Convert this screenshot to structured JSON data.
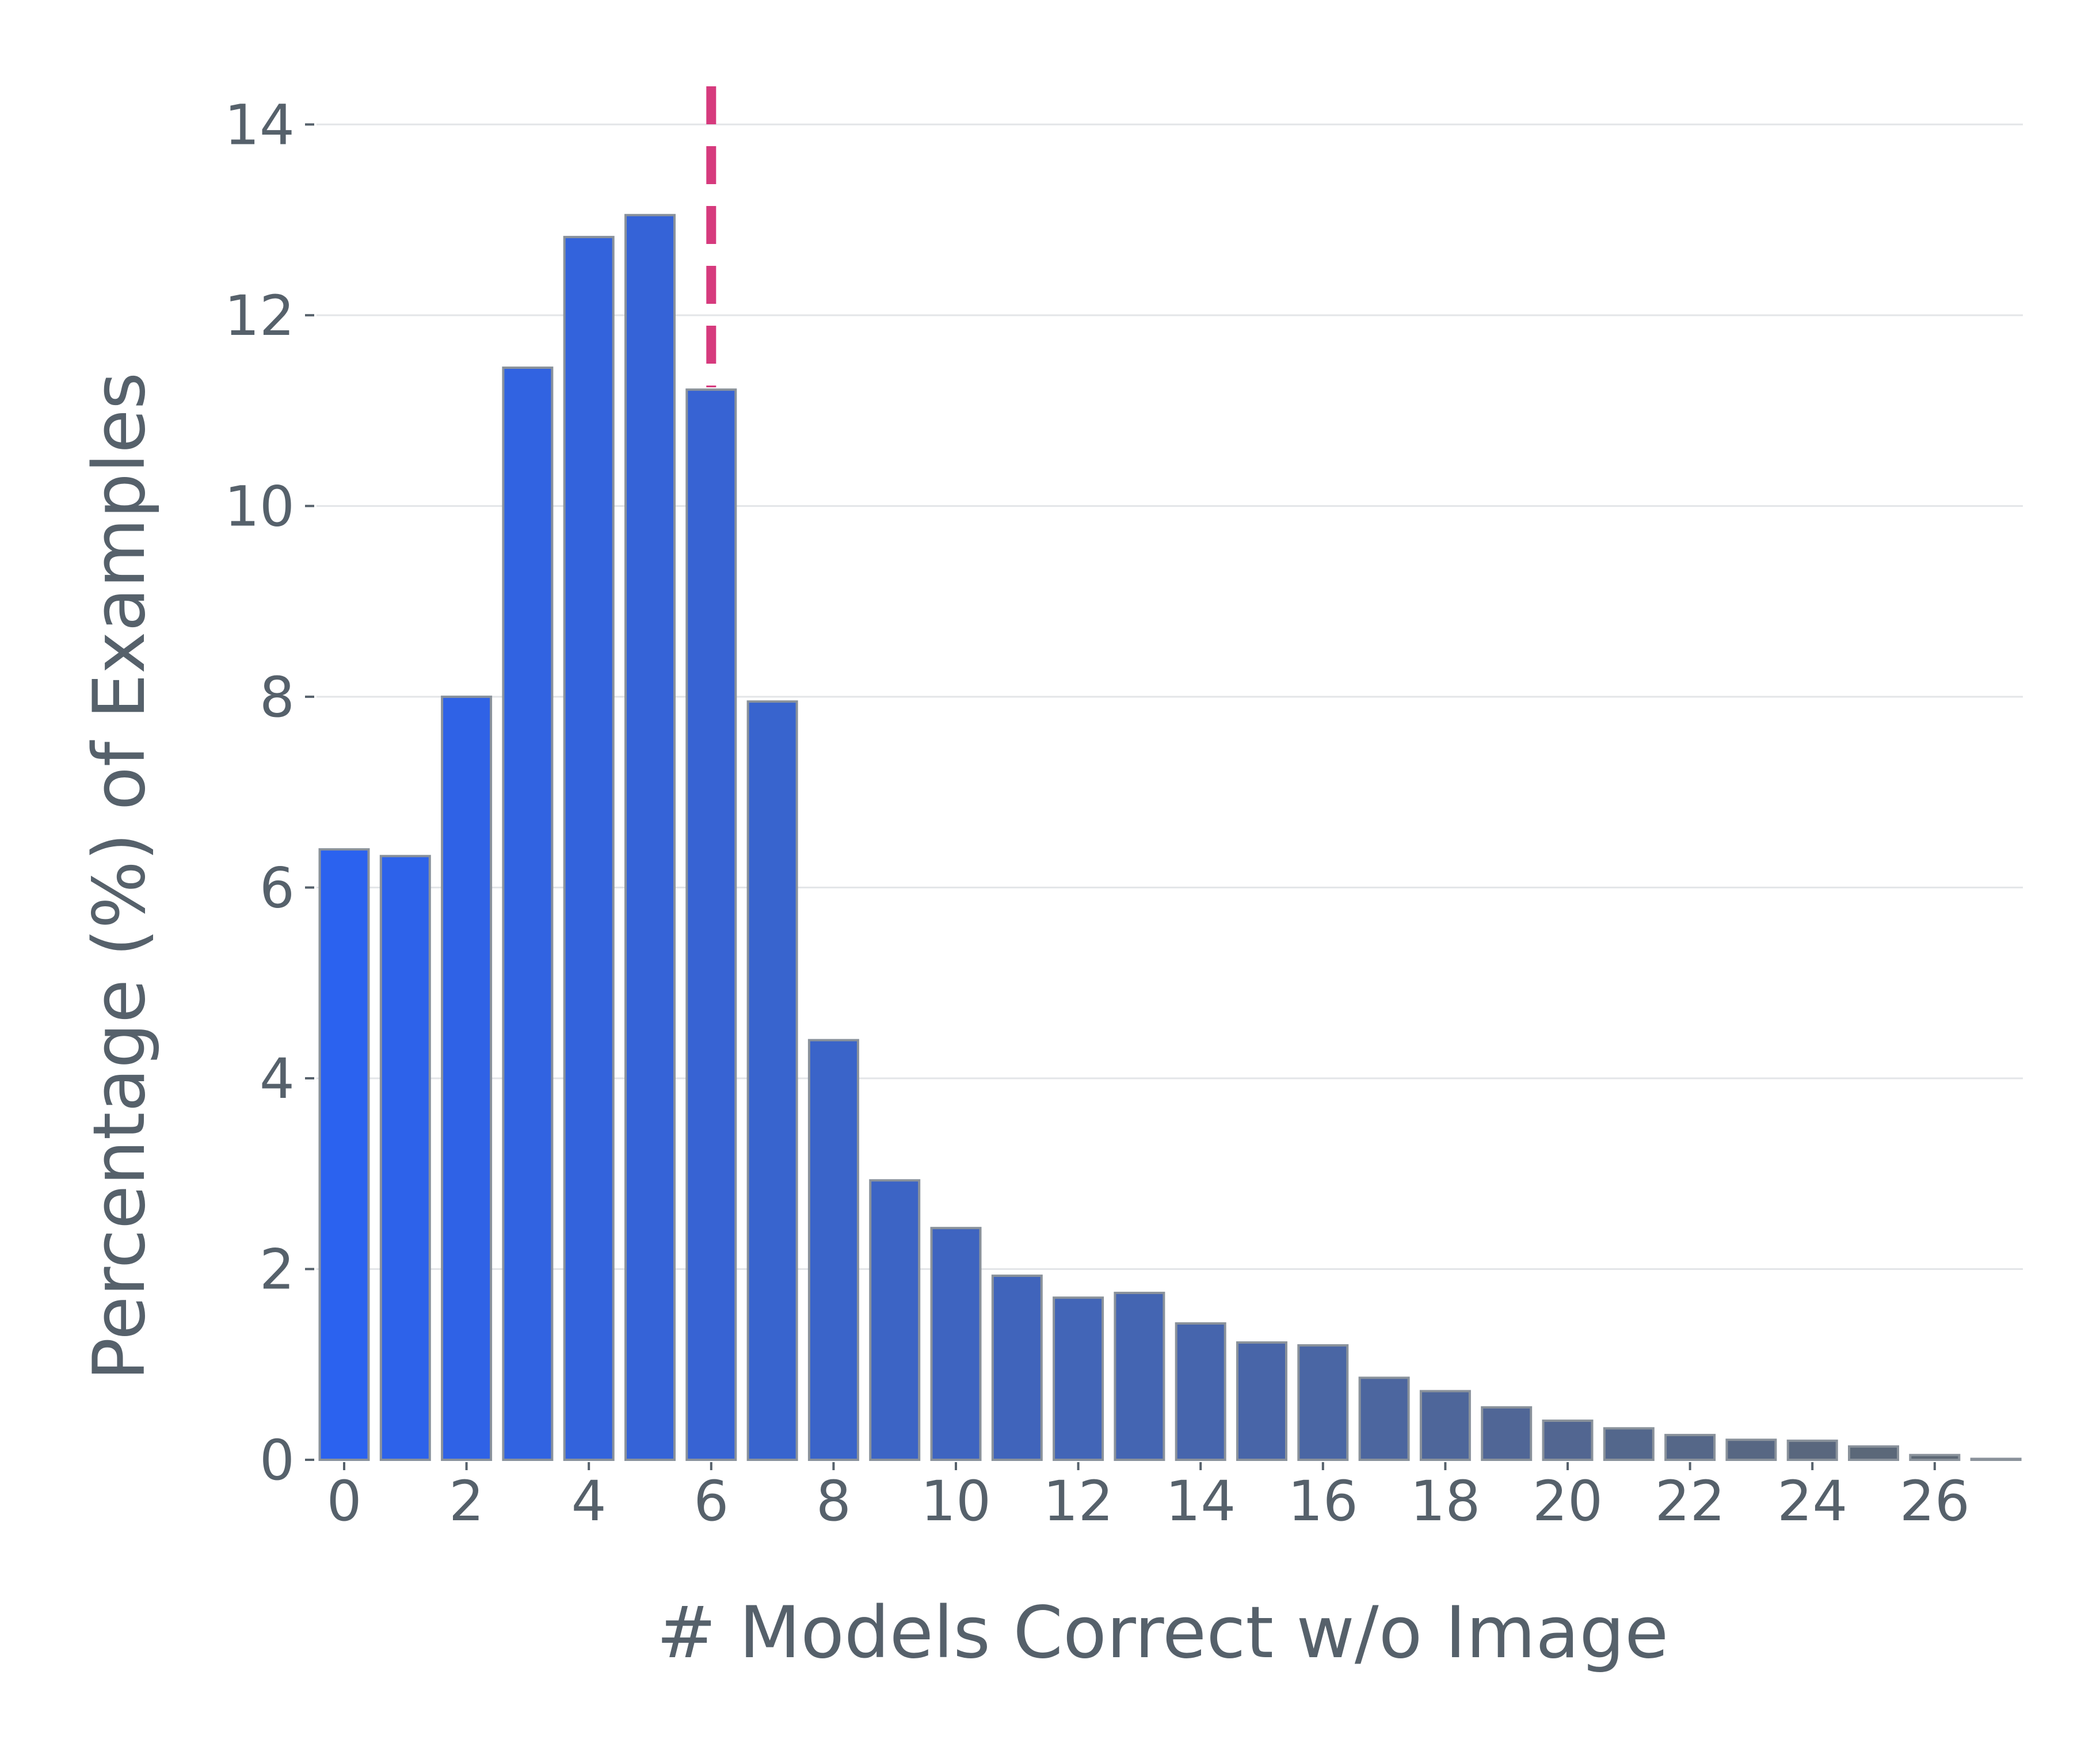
{
  "chart_data": {
    "type": "bar",
    "xlabel": "# Models Correct w/o Image",
    "ylabel": "Percentage (%) of Examples",
    "categories": [
      0,
      1,
      2,
      3,
      4,
      5,
      6,
      7,
      8,
      9,
      10,
      11,
      12,
      13,
      14,
      15,
      16,
      17,
      18,
      19,
      20,
      21,
      22,
      23,
      24,
      25,
      26,
      27
    ],
    "values": [
      6.4,
      6.33,
      8.0,
      11.45,
      12.82,
      13.05,
      11.22,
      7.95,
      4.4,
      2.93,
      2.43,
      1.93,
      1.7,
      1.75,
      1.43,
      1.23,
      1.2,
      0.86,
      0.72,
      0.55,
      0.41,
      0.33,
      0.26,
      0.21,
      0.2,
      0.14,
      0.05,
      0.01
    ],
    "xticks": [
      0,
      2,
      4,
      6,
      8,
      10,
      12,
      14,
      16,
      18,
      20,
      22,
      24,
      26
    ],
    "yticks": [
      0,
      2,
      4,
      6,
      8,
      10,
      12,
      14
    ],
    "ylim": [
      0,
      14.4
    ],
    "grid": "horizontal",
    "reference_line": {
      "orientation": "vertical",
      "x": 6,
      "color": "#d63a7d",
      "style": "dashed"
    },
    "bar_color_start": "#2b62ef",
    "bar_color_end": "#5f6870"
  }
}
